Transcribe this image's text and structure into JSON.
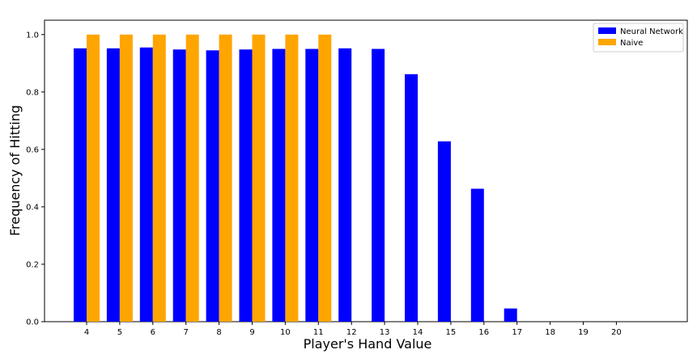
{
  "chart_data": {
    "type": "bar",
    "title": "",
    "xlabel": "Player's Hand Value",
    "ylabel": "Frequency of Hitting",
    "categories": [
      "4",
      "5",
      "6",
      "7",
      "8",
      "9",
      "10",
      "11",
      "12",
      "13",
      "14",
      "15",
      "16",
      "17",
      "18",
      "19",
      "20"
    ],
    "series": [
      {
        "name": "Neural Network",
        "color": "#0000ff",
        "values": [
          0.952,
          0.952,
          0.955,
          0.948,
          0.945,
          0.948,
          0.95,
          0.95,
          0.952,
          0.95,
          0.862,
          0.628,
          0.463,
          0.046,
          0.0,
          0.0,
          0.0
        ]
      },
      {
        "name": "Naive",
        "color": "#ffa500",
        "values": [
          1.0,
          1.0,
          1.0,
          1.0,
          1.0,
          1.0,
          1.0,
          1.0,
          0.0,
          0.0,
          0.0,
          0.0,
          0.0,
          0.0,
          0.0,
          0.0,
          0.0
        ]
      }
    ],
    "ylim": [
      0.0,
      1.05
    ],
    "yticks": [
      "0.0",
      "0.2",
      "0.4",
      "0.6",
      "0.8",
      "1.0"
    ],
    "grid": false,
    "legend_position": "top-right"
  }
}
